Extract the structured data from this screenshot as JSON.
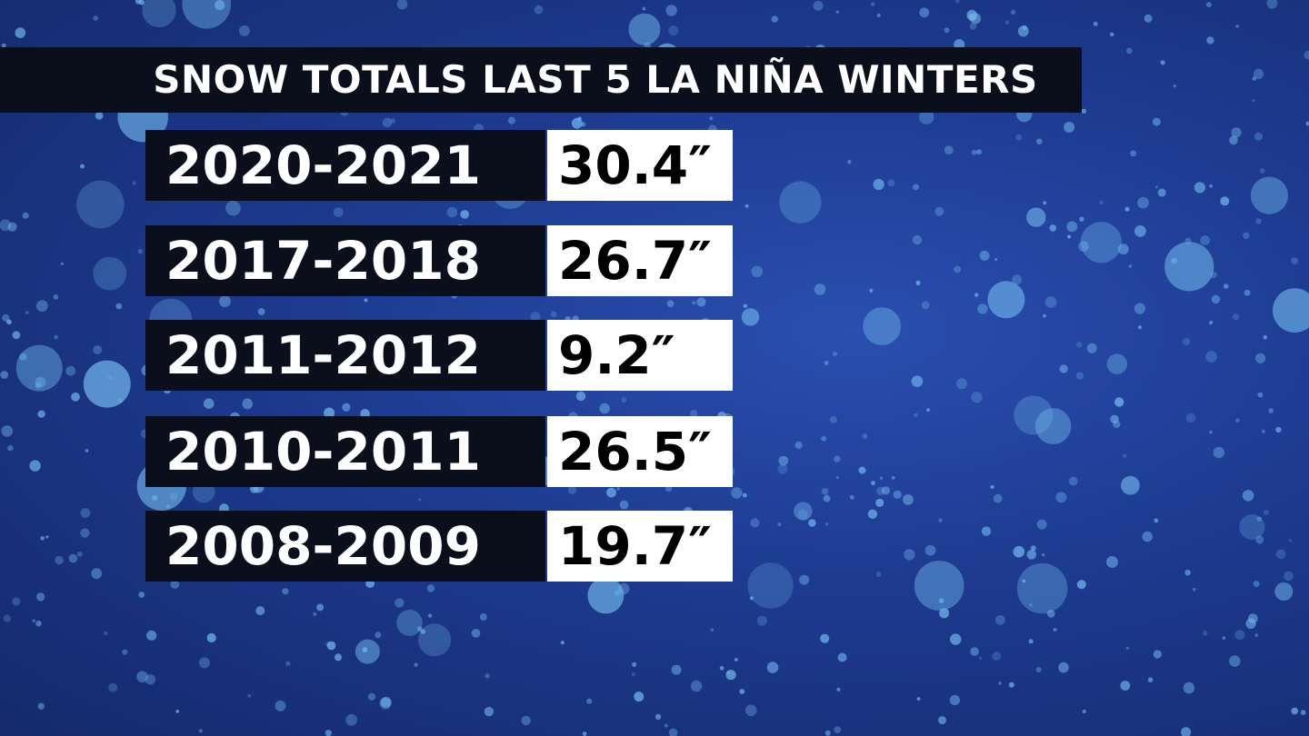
{
  "title": "SNOW TOTALS LAST 5 LA NIÑA WINTERS",
  "table": {
    "rows": [
      [
        "2020-2021",
        "30.4″"
      ],
      [
        "2017-2018",
        "26.7″"
      ],
      [
        "2011-2012",
        "9.2″"
      ],
      [
        "2010-2011",
        "26.5″"
      ],
      [
        "2008-2009",
        "19.7″"
      ]
    ]
  }
}
